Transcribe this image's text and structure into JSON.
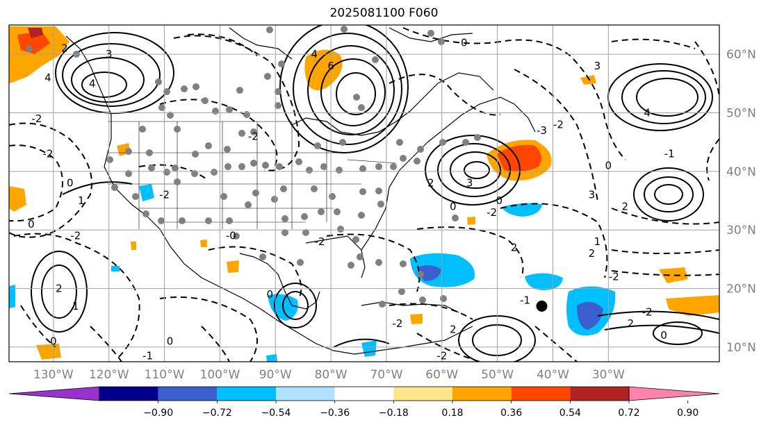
{
  "title": "2025081100 F060",
  "map": {
    "lon_range": [
      -138,
      -10
    ],
    "lat_range": [
      7.5,
      65
    ],
    "lat_labels": [
      "60°N",
      "50°N",
      "40°N",
      "30°N",
      "20°N",
      "10°N"
    ],
    "lat_values": [
      60,
      50,
      40,
      30,
      20,
      10
    ],
    "lon_labels": [
      "130°W",
      "120°W",
      "110°W",
      "100°W",
      "90°W",
      "80°W",
      "70°W",
      "60°W",
      "50°W",
      "40°W",
      "30°W"
    ],
    "lon_values": [
      -130,
      -120,
      -110,
      -100,
      -90,
      -80,
      -70,
      -60,
      -50,
      -40,
      -30
    ],
    "gridlines": true,
    "grid_color": "#a0a0a0",
    "marker": {
      "lon": -42,
      "lat": 17,
      "color": "#000000"
    }
  },
  "colorbar": {
    "colors": [
      "#9932cc",
      "#00008b",
      "#3a5fcd",
      "#00bfff",
      "#b0e0ff",
      "#ffffff",
      "#fde68a",
      "#ffa500",
      "#ff4500",
      "#b22222",
      "#ff82ab"
    ],
    "tick_labels": [
      "−0.90",
      "−0.72",
      "−0.54",
      "−0.36",
      "−0.18",
      "0.18",
      "0.36",
      "0.54",
      "0.72",
      "0.90"
    ],
    "extend": "both"
  },
  "contour_labels": [
    {
      "t": "2",
      "lon": -128,
      "lat": 61
    },
    {
      "t": "3",
      "lon": -120,
      "lat": 60
    },
    {
      "t": "4",
      "lon": -123,
      "lat": 55
    },
    {
      "t": "4",
      "lon": -131,
      "lat": 56
    },
    {
      "t": "-2",
      "lon": -133,
      "lat": 49
    },
    {
      "t": "-2",
      "lon": -131,
      "lat": 43
    },
    {
      "t": "0",
      "lon": -127,
      "lat": 38
    },
    {
      "t": "1",
      "lon": -125,
      "lat": 35
    },
    {
      "t": "0",
      "lon": -134,
      "lat": 31
    },
    {
      "t": "-2",
      "lon": -126,
      "lat": 29
    },
    {
      "t": "2",
      "lon": -129,
      "lat": 20
    },
    {
      "t": "1",
      "lon": -126,
      "lat": 17
    },
    {
      "t": "0",
      "lon": -130,
      "lat": 11
    },
    {
      "t": "-2",
      "lon": -110,
      "lat": 36
    },
    {
      "t": "-2",
      "lon": -94,
      "lat": 46
    },
    {
      "t": "4",
      "lon": -83,
      "lat": 60
    },
    {
      "t": "6",
      "lon": -80,
      "lat": 58
    },
    {
      "t": "0",
      "lon": -56,
      "lat": 62
    },
    {
      "t": "-3",
      "lon": -42,
      "lat": 47
    },
    {
      "t": "-2",
      "lon": -39,
      "lat": 48
    },
    {
      "t": "2",
      "lon": -62,
      "lat": 38
    },
    {
      "t": "3",
      "lon": -55,
      "lat": 38
    },
    {
      "t": "0",
      "lon": -58,
      "lat": 34
    },
    {
      "t": "-2",
      "lon": -51,
      "lat": 33
    },
    {
      "t": "-0",
      "lon": -50,
      "lat": 35
    },
    {
      "t": "2",
      "lon": -47,
      "lat": 27
    },
    {
      "t": "3",
      "lon": -32,
      "lat": 58
    },
    {
      "t": "4",
      "lon": -23,
      "lat": 50
    },
    {
      "t": "3",
      "lon": -33,
      "lat": 36
    },
    {
      "t": "2",
      "lon": -27,
      "lat": 34
    },
    {
      "t": "0",
      "lon": -30,
      "lat": 41
    },
    {
      "t": "-1",
      "lon": -19,
      "lat": 43
    },
    {
      "t": "1",
      "lon": -32,
      "lat": 28
    },
    {
      "t": "2",
      "lon": -33,
      "lat": 26
    },
    {
      "t": "-2",
      "lon": -29,
      "lat": 22
    },
    {
      "t": "-2",
      "lon": -23,
      "lat": 16
    },
    {
      "t": "2",
      "lon": -26,
      "lat": 14
    },
    {
      "t": "0",
      "lon": -20,
      "lat": 12
    },
    {
      "t": "-2",
      "lon": -82,
      "lat": 28
    },
    {
      "t": "-0",
      "lon": -98,
      "lat": 29
    },
    {
      "t": "0",
      "lon": -91,
      "lat": 19
    },
    {
      "t": "-2",
      "lon": -68,
      "lat": 14
    },
    {
      "t": "0",
      "lon": -109,
      "lat": 11
    },
    {
      "t": "-1",
      "lon": -113,
      "lat": 8.5
    },
    {
      "t": "2",
      "lon": -58,
      "lat": 13
    },
    {
      "t": "-1",
      "lon": -45,
      "lat": 18
    },
    {
      "t": "-2",
      "lon": -60,
      "lat": 8.5
    }
  ]
}
